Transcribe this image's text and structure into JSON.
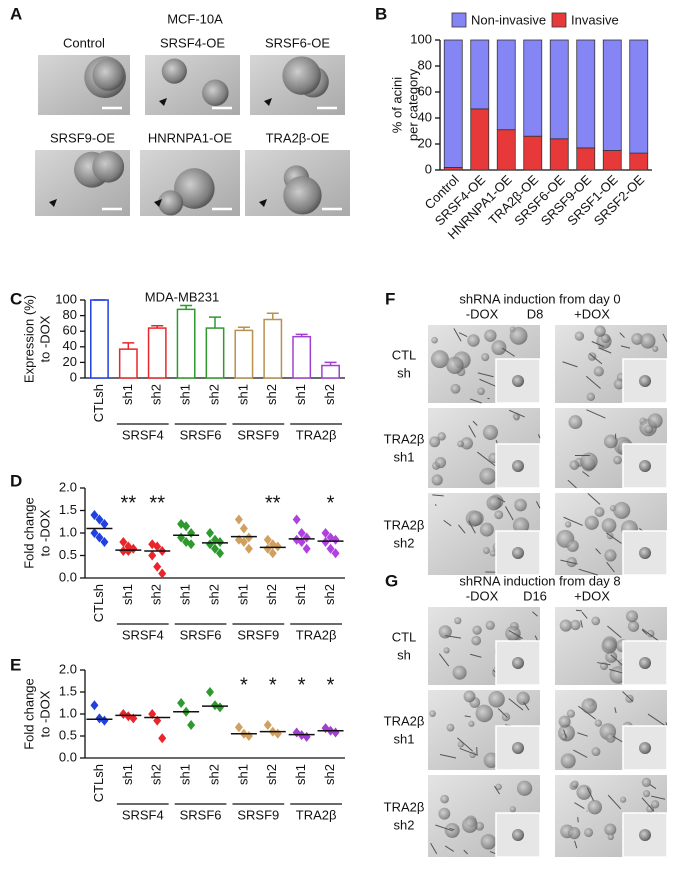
{
  "panel_labels": [
    "A",
    "B",
    "C",
    "D",
    "E",
    "F",
    "G"
  ],
  "panel_a": {
    "title": "MCF-10A",
    "labels": [
      "Control",
      "SRSF4-OE",
      "SRSF6-OE",
      "SRSF9-OE",
      "HNRNPA1-OE",
      "TRA2β-OE"
    ]
  },
  "panel_f": {
    "title": "shRNA induction from day 0",
    "columns": [
      "-DOX",
      "D8",
      "+DOX"
    ],
    "rows": [
      [
        "CTL",
        "sh"
      ],
      [
        "TRA2β",
        "sh1"
      ],
      [
        "TRA2β",
        "sh2"
      ]
    ]
  },
  "panel_g": {
    "title": "shRNA induction from day 8",
    "columns": [
      "-DOX",
      "D16",
      "+DOX"
    ],
    "rows": [
      [
        "CTL",
        "sh"
      ],
      [
        "TRA2β",
        "sh1"
      ],
      [
        "TRA2β",
        "sh2"
      ]
    ]
  },
  "chart_data": [
    {
      "type": "stacked_bar",
      "ylabel": [
        "% of acini",
        "per category"
      ],
      "categories": [
        "Control",
        "SRSF4-OE",
        "HNRNPA1-OE",
        "TRA2β-OE",
        "SRSF6-OE",
        "SRSF9-OE",
        "SRSF1-OE",
        "SRSF2-OE"
      ],
      "series": [
        {
          "name": "Non-invasive",
          "color": "#8585f5",
          "values": [
            98,
            53,
            69,
            74,
            76,
            83,
            85,
            87
          ]
        },
        {
          "name": "Invasive",
          "color": "#e8393a",
          "values": [
            2,
            47,
            31,
            26,
            24,
            17,
            15,
            13
          ]
        }
      ],
      "ylim": [
        0,
        100
      ],
      "yticks": [
        0,
        20,
        40,
        60,
        80,
        100
      ]
    },
    {
      "type": "bar",
      "title": "MDA-MB231",
      "ylabel": [
        "Expression (%)",
        "to -DOX"
      ],
      "categories": [
        "CTLsh",
        "sh1",
        "sh2",
        "sh1",
        "sh2",
        "sh1",
        "sh2",
        "sh1",
        "sh2"
      ],
      "groups": [
        "SRSF4",
        "SRSF6",
        "SRSF9",
        "TRA2β"
      ],
      "values": [
        100,
        37,
        64,
        88,
        64,
        61,
        75,
        53,
        16
      ],
      "errors": [
        0,
        8,
        3,
        5,
        14,
        4,
        8,
        3,
        4
      ],
      "colors": [
        "#2040e0",
        "#e8262b",
        "#e8262b",
        "#2e9a2e",
        "#2e9a2e",
        "#b8904f",
        "#b8904f",
        "#a040d0",
        "#a040d0"
      ],
      "ylim": [
        0,
        100
      ],
      "yticks": [
        0,
        20,
        40,
        60,
        80,
        100
      ]
    },
    {
      "type": "dot",
      "ylabel": [
        "Fold change",
        "to -DOX"
      ],
      "categories": [
        "CTLsh",
        "sh1",
        "sh2",
        "sh1",
        "sh2",
        "sh1",
        "sh2",
        "sh1",
        "sh2"
      ],
      "groups": [
        "SRSF4",
        "SRSF6",
        "SRSF9",
        "TRA2β"
      ],
      "points": [
        [
          1.4,
          1.3,
          1.2,
          1.0,
          0.9,
          0.8
        ],
        [
          0.8,
          0.7,
          0.65,
          0.6,
          0.6
        ],
        [
          0.75,
          0.7,
          0.6,
          0.5,
          0.25,
          0.1
        ],
        [
          1.2,
          1.15,
          1.0,
          0.9,
          0.8,
          0.75
        ],
        [
          1.0,
          0.85,
          0.8,
          0.75,
          0.65,
          0.55
        ],
        [
          1.3,
          1.1,
          0.9,
          0.85,
          0.8,
          0.65
        ],
        [
          0.85,
          0.75,
          0.7,
          0.65,
          0.55
        ],
        [
          1.3,
          1.0,
          0.9,
          0.85,
          0.8,
          0.65
        ],
        [
          1.0,
          0.9,
          0.85,
          0.8,
          0.65,
          0.55
        ]
      ],
      "medians": [
        1.1,
        0.62,
        0.6,
        0.95,
        0.78,
        0.92,
        0.68,
        0.87,
        0.82
      ],
      "annotations": [
        null,
        "**",
        "**",
        null,
        null,
        null,
        "**",
        null,
        "*"
      ],
      "colors": [
        "#2040e0",
        "#e8262b",
        "#e8262b",
        "#2e9a2e",
        "#2e9a2e",
        "#d0a060",
        "#d0a060",
        "#b040e0",
        "#b040e0"
      ],
      "ylim": [
        0,
        2.0
      ],
      "yticks": [
        {
          "value": 0,
          "label": "0.0"
        },
        {
          "value": 0.5,
          "label": "0.5"
        },
        {
          "value": 1.0,
          "label": "1.0"
        },
        {
          "value": 1.5,
          "label": "1.5"
        },
        {
          "value": 2.0,
          "label": "2.0"
        }
      ]
    },
    {
      "type": "dot",
      "ylabel": [
        "Fold change",
        "to -DOX"
      ],
      "categories": [
        "CTLsh",
        "sh1",
        "sh2",
        "sh1",
        "sh2",
        "sh1",
        "sh2",
        "sh1",
        "sh2"
      ],
      "groups": [
        "SRSF4",
        "SRSF6",
        "SRSF9",
        "TRA2β"
      ],
      "points": [
        [
          1.2,
          0.9,
          0.85
        ],
        [
          1.0,
          0.95,
          0.9
        ],
        [
          1.0,
          0.85,
          0.45
        ],
        [
          1.25,
          1.05,
          0.75
        ],
        [
          1.5,
          1.2,
          1.15
        ],
        [
          0.7,
          0.55,
          0.5
        ],
        [
          0.75,
          0.6,
          0.55
        ],
        [
          0.58,
          0.52,
          0.48
        ],
        [
          0.68,
          0.62,
          0.58
        ]
      ],
      "medians": [
        0.88,
        0.97,
        0.92,
        1.05,
        1.18,
        0.55,
        0.6,
        0.53,
        0.62
      ],
      "annotations": [
        null,
        null,
        null,
        null,
        null,
        "*",
        "*",
        "*",
        "*"
      ],
      "colors": [
        "#2040e0",
        "#e8262b",
        "#e8262b",
        "#2e9a2e",
        "#2e9a2e",
        "#d0a060",
        "#d0a060",
        "#a040d0",
        "#a040d0"
      ],
      "ylim": [
        0,
        2.0
      ],
      "yticks": [
        {
          "value": 0,
          "label": "0.0"
        },
        {
          "value": 0.5,
          "label": "0.5"
        },
        {
          "value": 1.0,
          "label": "1.0"
        },
        {
          "value": 1.5,
          "label": "1.5"
        },
        {
          "value": 2.0,
          "label": "2.0"
        }
      ]
    }
  ]
}
